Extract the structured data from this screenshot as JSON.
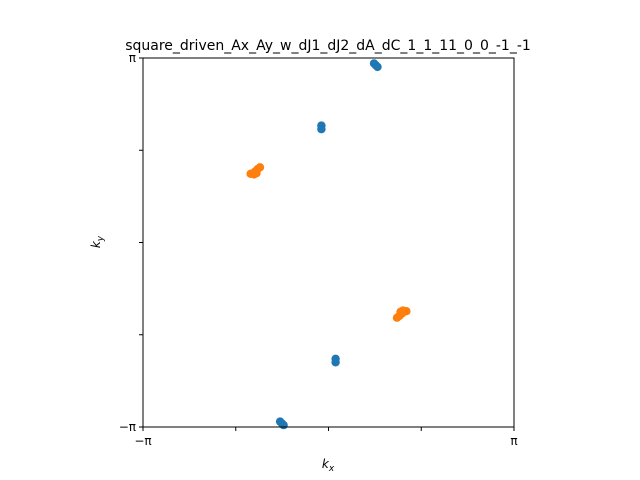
{
  "chart_data": {
    "type": "scatter",
    "title": "square_driven_Ax_Ay_w_dJ1_dJ2_dA_dC_1_1_11_0_0_-1_-1",
    "xlabel_base": "k",
    "xlabel_sub": "x",
    "ylabel_base": "k",
    "ylabel_sub": "y",
    "xlim": [
      -3.14159,
      3.14159
    ],
    "ylim": [
      -3.14159,
      3.14159
    ],
    "x_ticks": [
      {
        "value": -3.14159,
        "label": "−π"
      },
      {
        "value": -1.5708,
        "label": ""
      },
      {
        "value": 0,
        "label": ""
      },
      {
        "value": 1.5708,
        "label": ""
      },
      {
        "value": 3.14159,
        "label": "π"
      }
    ],
    "y_ticks": [
      {
        "value": -3.14159,
        "label": "−π"
      },
      {
        "value": -1.5708,
        "label": ""
      },
      {
        "value": 0,
        "label": ""
      },
      {
        "value": 1.5708,
        "label": ""
      },
      {
        "value": 3.14159,
        "label": "π"
      }
    ],
    "grid": false,
    "series": [
      {
        "color": "#1f77b4",
        "points": [
          [
            0.77,
            3.05
          ],
          [
            0.8,
            3.02
          ],
          [
            0.83,
            2.99
          ],
          [
            -0.12,
            1.99
          ],
          [
            -0.12,
            1.93
          ],
          [
            0.12,
            -1.98
          ],
          [
            0.12,
            -2.04
          ],
          [
            -0.82,
            -3.05
          ],
          [
            -0.79,
            -3.08
          ],
          [
            -0.76,
            -3.11
          ]
        ]
      },
      {
        "color": "#ff7f0e",
        "points": [
          [
            -1.32,
            1.17
          ],
          [
            -1.28,
            1.18
          ],
          [
            -1.24,
            1.21
          ],
          [
            -1.2,
            1.25
          ],
          [
            -1.22,
            1.18
          ],
          [
            -1.16,
            1.28
          ],
          [
            -1.26,
            1.16
          ],
          [
            1.32,
            -1.17
          ],
          [
            1.28,
            -1.18
          ],
          [
            1.24,
            -1.21
          ],
          [
            1.2,
            -1.25
          ],
          [
            1.22,
            -1.18
          ],
          [
            1.16,
            -1.28
          ],
          [
            1.26,
            -1.16
          ]
        ]
      }
    ]
  }
}
